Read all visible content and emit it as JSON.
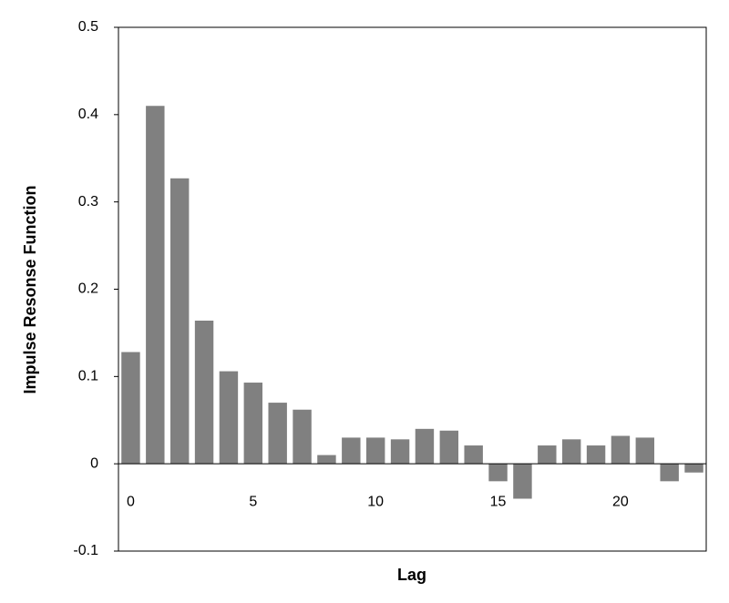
{
  "chart_data": {
    "type": "bar",
    "x_label": "Lag",
    "y_label": "Impulse Resonse Function",
    "categories": [
      "0",
      null,
      null,
      null,
      null,
      "5",
      null,
      null,
      null,
      null,
      "10",
      null,
      null,
      null,
      null,
      "15",
      null,
      null,
      null,
      null,
      "20",
      null,
      null,
      null
    ],
    "values": [
      0.128,
      0.41,
      0.327,
      0.164,
      0.106,
      0.093,
      0.07,
      0.062,
      0.01,
      0.03,
      0.03,
      0.028,
      0.04,
      0.038,
      0.021,
      -0.02,
      -0.04,
      0.021,
      0.028,
      0.021,
      0.032,
      0.03,
      -0.02,
      -0.01
    ],
    "color": "#808080",
    "ylim": [
      -0.1,
      0.5
    ],
    "yticks": [
      -0.1,
      0,
      0.1,
      0.2,
      0.3,
      0.4,
      0.5
    ]
  }
}
